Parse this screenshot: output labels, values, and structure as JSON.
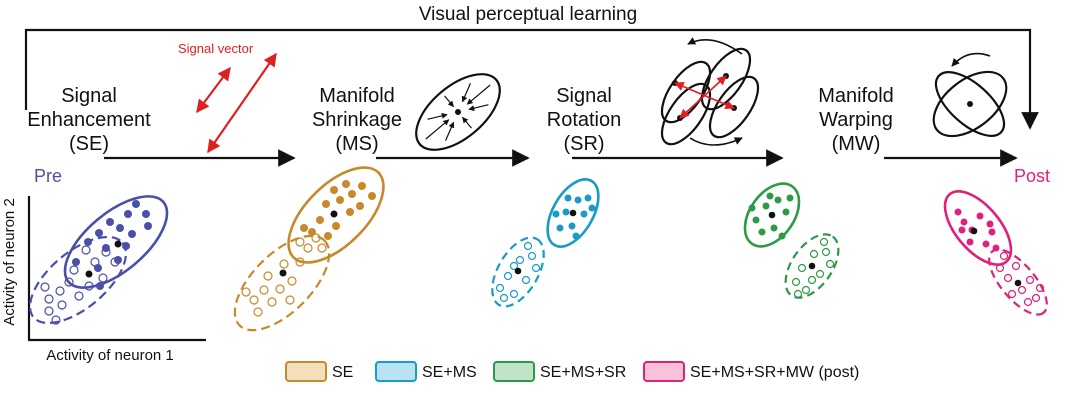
{
  "title": "Visual perceptual learning",
  "signal_vector_label": "Signal vector",
  "stages": [
    {
      "id": "se",
      "lines": [
        "Signal",
        "Enhancement",
        "(SE)"
      ]
    },
    {
      "id": "ms",
      "lines": [
        "Manifold",
        "Shrinkage",
        "(MS)"
      ]
    },
    {
      "id": "sr",
      "lines": [
        "Signal",
        "Rotation",
        "(SR)"
      ]
    },
    {
      "id": "mw",
      "lines": [
        "Manifold",
        "Warping",
        "(MW)"
      ]
    }
  ],
  "pre_label": "Pre",
  "post_label": "Post",
  "axes": {
    "x_label": "Activity of neuron 1",
    "y_label": "Activity of neuron 2"
  },
  "legend": [
    {
      "label": "SE",
      "stroke": "#c8892a",
      "fill": "#f3dfba"
    },
    {
      "label": "SE+MS",
      "stroke": "#1a9ac9",
      "fill": "#b9e3f3"
    },
    {
      "label": "SE+MS+SR",
      "stroke": "#2e9a48",
      "fill": "#bfe4c6"
    },
    {
      "label": "SE+MS+SR+MW (post)",
      "stroke": "#e0207a",
      "fill": "#f7c2da"
    }
  ],
  "colors": {
    "pre": "#4a4fa8",
    "se": "#c8892a",
    "ms": "#1a9ac9",
    "sr": "#2e9a48",
    "mw": "#e0207a",
    "signal_vector": "#e02020",
    "ink": "#111111"
  }
}
